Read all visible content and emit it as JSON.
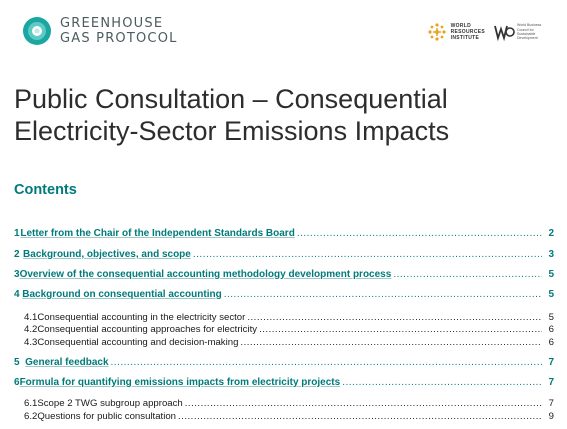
{
  "header": {
    "org_line1": "GREENHOUSE",
    "org_line2": "GAS PROTOCOL",
    "wri_line1": "WORLD",
    "wri_line2": "RESOURCES",
    "wri_line3": "INSTITUTE",
    "wbcsd_text": "World Business Council for Sustainable Development",
    "brand_color": "#1aa7a2"
  },
  "title": {
    "line1": "Public Consultation – Consequential",
    "line2": "Electricity-Sector Emissions Impacts"
  },
  "contents_heading": "Contents",
  "toc": [
    {
      "num": "1",
      "label": "Letter from the Chair of the Independent Standards Board",
      "page": "2",
      "level": 1
    },
    {
      "num": "2",
      "label": "Background, objectives, and scope",
      "page": "3",
      "level": 1
    },
    {
      "num": "3",
      "label": "Overview of the consequential accounting methodology development process",
      "page": "5",
      "level": 1
    },
    {
      "num": "4",
      "label": "Background on consequential accounting",
      "page": "5",
      "level": 1
    },
    {
      "num": "4.1",
      "label": "Consequential accounting in the electricity sector",
      "page": "5",
      "level": 2
    },
    {
      "num": "4.2",
      "label": "Consequential accounting approaches for electricity",
      "page": "6",
      "level": 2
    },
    {
      "num": "4.3",
      "label": "Consequential accounting and decision-making",
      "page": "6",
      "level": 2
    },
    {
      "num": "5",
      "label": "General feedback",
      "page": "7",
      "level": 1
    },
    {
      "num": "6",
      "label": "Formula for quantifying emissions impacts from electricity projects",
      "page": "7",
      "level": 1
    },
    {
      "num": "6.1",
      "label": "Scope 2 TWG subgroup approach",
      "page": "7",
      "level": 2
    },
    {
      "num": "6.2",
      "label": "Questions for public consultation",
      "page": "9",
      "level": 2
    }
  ]
}
